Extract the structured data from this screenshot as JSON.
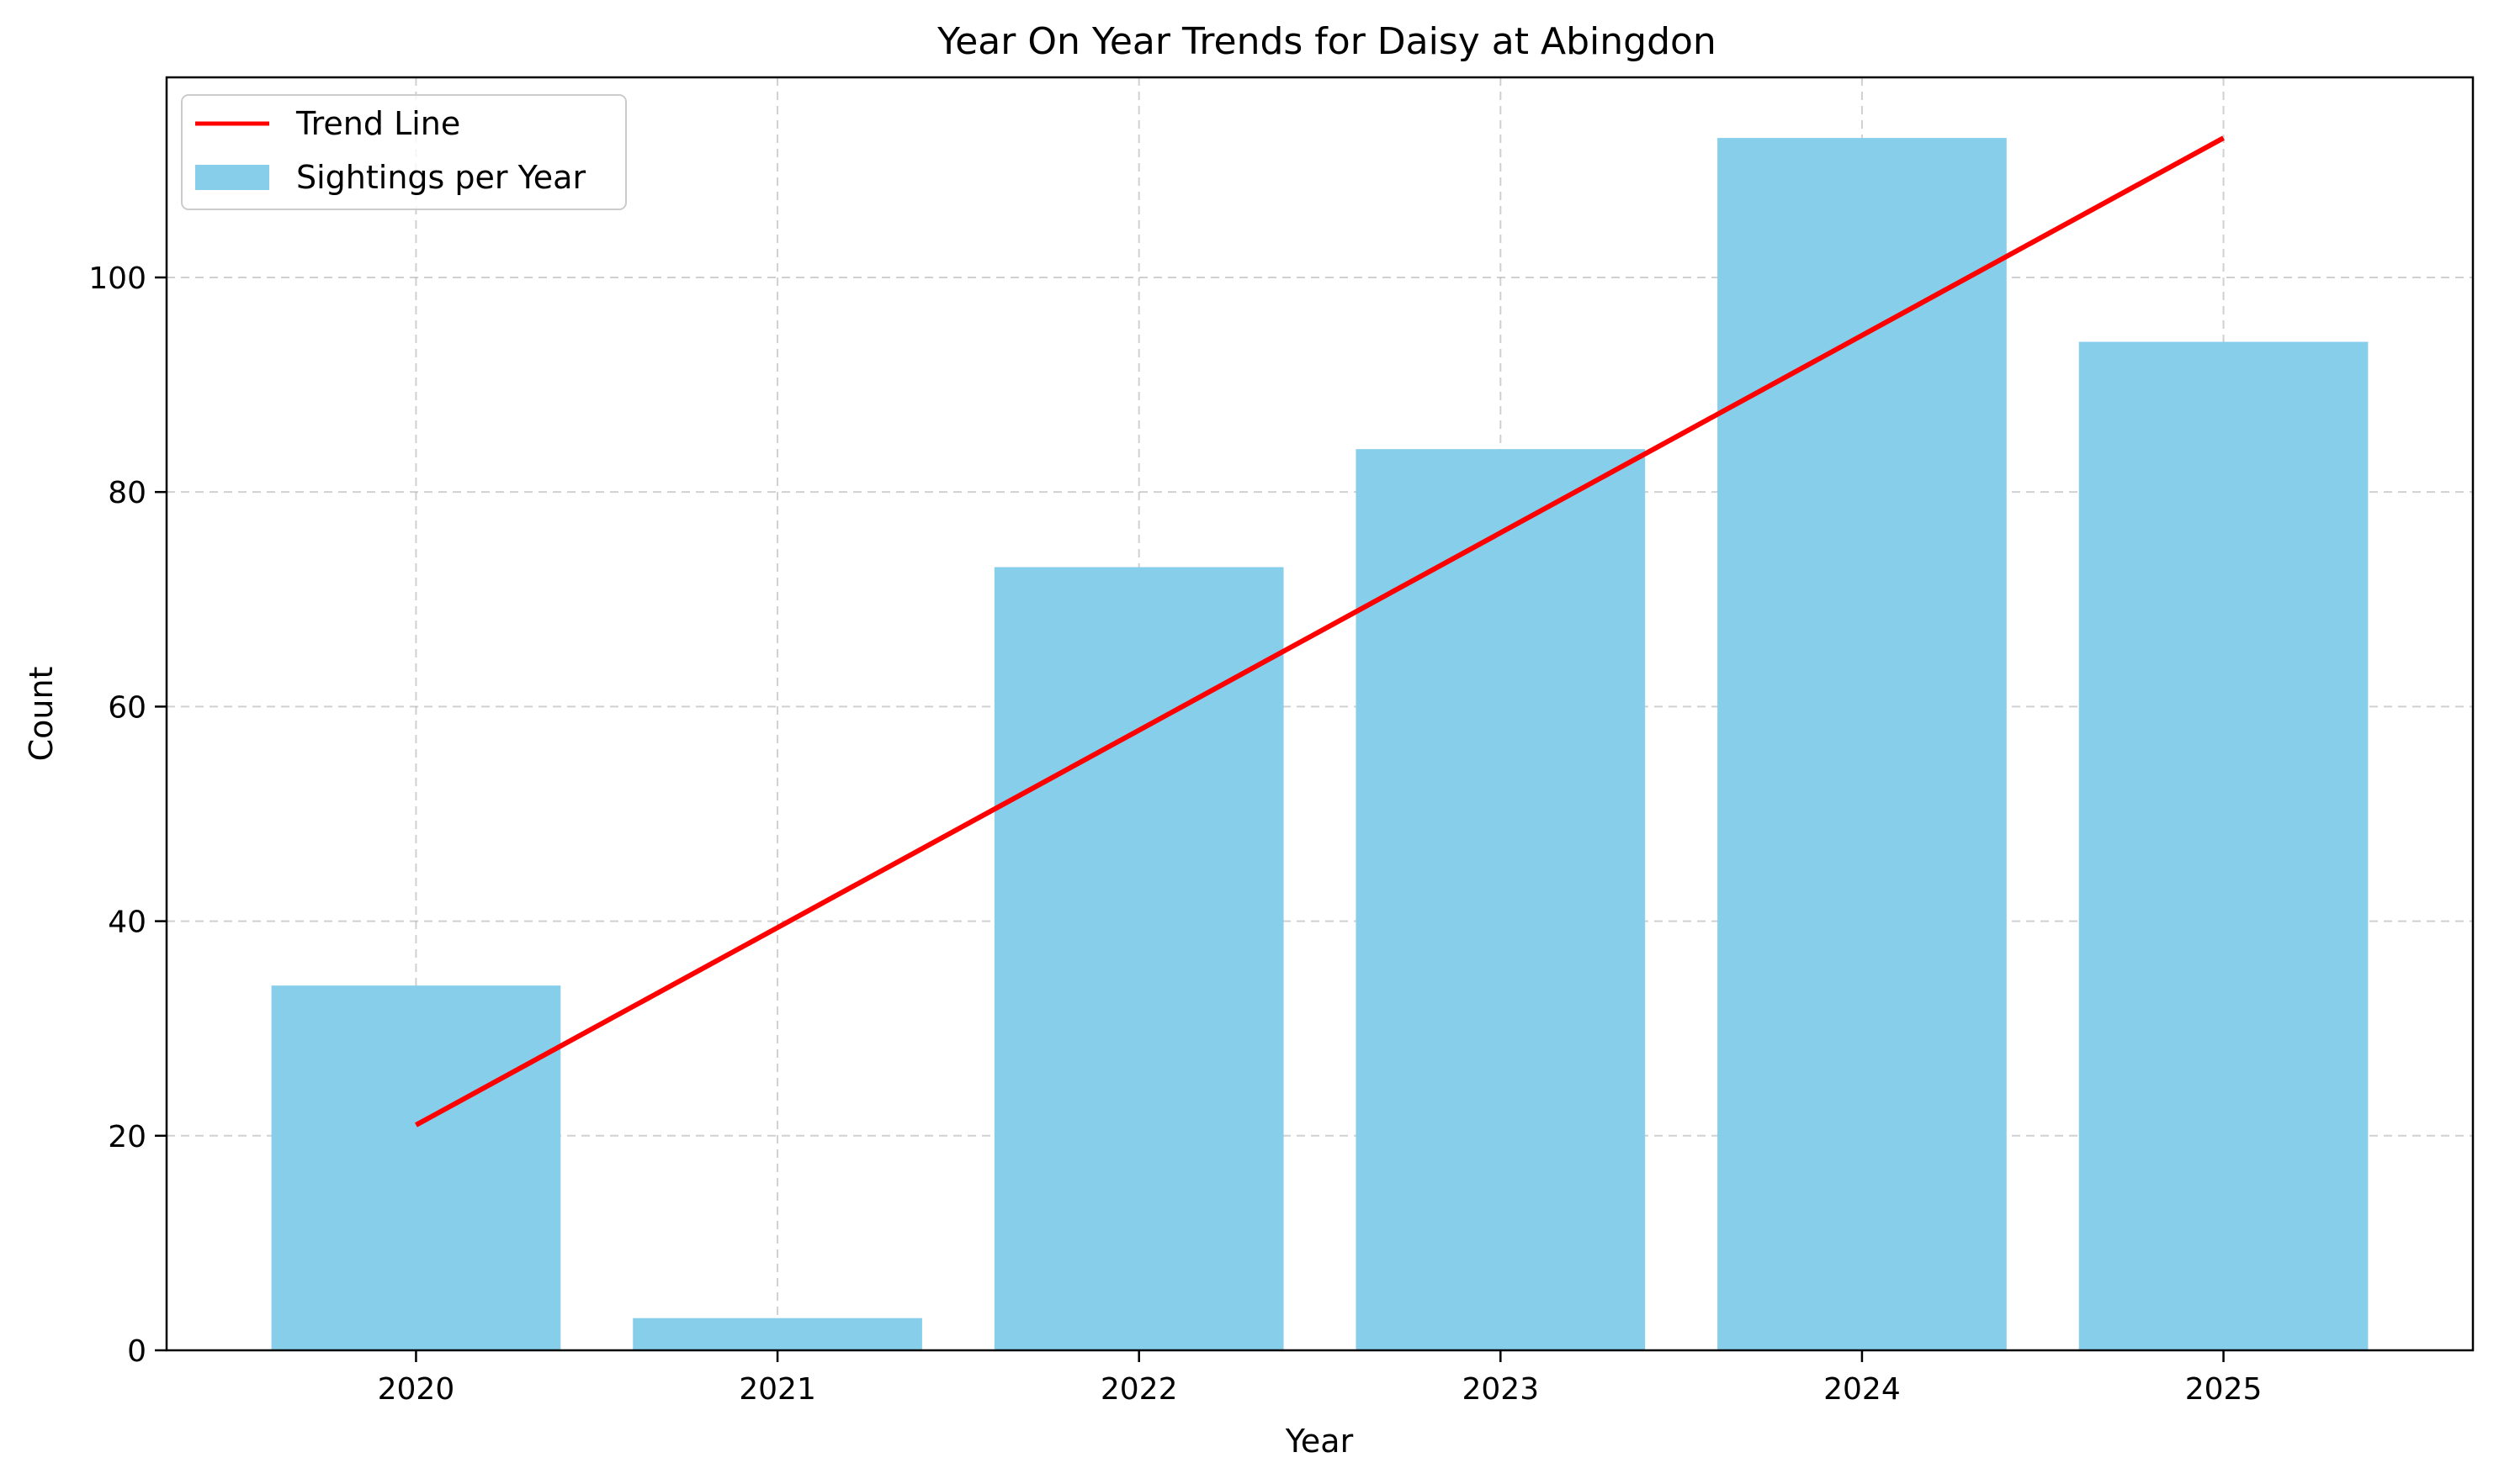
{
  "chart_data": {
    "type": "bar",
    "title": "Year On Year Trends for Daisy at Abingdon",
    "xlabel": "Year",
    "ylabel": "Count",
    "categories": [
      "2020",
      "2021",
      "2022",
      "2023",
      "2024",
      "2025"
    ],
    "series": [
      {
        "name": "Sightings per Year",
        "type": "bar",
        "color": "#87CEEB",
        "values": [
          34,
          3,
          73,
          84,
          113,
          94
        ]
      },
      {
        "name": "Trend Line",
        "type": "line",
        "color": "#ff0000",
        "values": [
          21,
          39.4,
          57.8,
          76.2,
          94.6,
          113
        ]
      }
    ],
    "ylim": [
      0,
      118.65
    ],
    "yticks": [
      0,
      20,
      40,
      60,
      80,
      100
    ],
    "grid": true,
    "legend_position": "top-left"
  }
}
